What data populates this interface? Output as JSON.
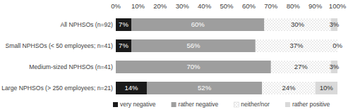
{
  "chart_data": {
    "type": "bar",
    "orientation": "horizontal",
    "stacked": true,
    "data_labels": true,
    "grid": false,
    "legend": "bottom",
    "categories": [
      "All NPHSOs (n=92)",
      "Small NPHSOs (< 50 employees; n=41)",
      "Medium-sized NPHSOs (n=41)",
      "Large NPHSOs (> 250 employees; n=21)"
    ],
    "series": [
      {
        "name": "very negative",
        "color": "#1a1a1a",
        "values": [
          7,
          7,
          0,
          14
        ],
        "value_labels": [
          "7%",
          "7%",
          null,
          "14%"
        ]
      },
      {
        "name": "rather negative",
        "color": "#9e9e9e",
        "values": [
          60,
          56,
          70,
          52
        ],
        "value_labels": [
          "60%",
          "56%",
          "70%",
          "52%"
        ]
      },
      {
        "name": "neither/nor",
        "color": "#ffffff",
        "values": [
          30,
          37,
          27,
          24
        ],
        "value_labels": [
          "30%",
          "37%",
          "27%",
          "24%"
        ]
      },
      {
        "name": "rather positive",
        "color": "#d9d9d9",
        "values": [
          3,
          0,
          3,
          10
        ],
        "value_labels": [
          "3%",
          "0%",
          "3%",
          "10%"
        ]
      }
    ],
    "xlim": [
      0,
      100
    ],
    "xticks": [
      {
        "value": 0,
        "label": "0%"
      },
      {
        "value": 10,
        "label": "10%"
      },
      {
        "value": 20,
        "label": "20%"
      },
      {
        "value": 30,
        "label": "30%"
      },
      {
        "value": 40,
        "label": "40%"
      },
      {
        "value": 50,
        "label": "50%"
      },
      {
        "value": 60,
        "label": "60%"
      },
      {
        "value": 70,
        "label": "70%"
      },
      {
        "value": 80,
        "label": "80%"
      },
      {
        "value": 90,
        "label": "90%"
      },
      {
        "value": 100,
        "label": "100%"
      }
    ]
  }
}
